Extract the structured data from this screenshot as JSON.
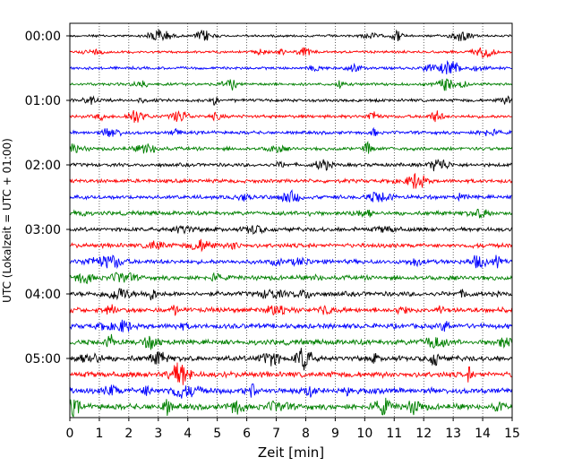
{
  "chart_data": {
    "type": "line",
    "title": "",
    "xlabel": "Zeit  [min]",
    "ylabel": "UTC (Lokalzeit = UTC + 01:00)",
    "xlim": [
      0,
      15
    ],
    "x_ticks": [
      0,
      1,
      2,
      3,
      4,
      5,
      6,
      7,
      8,
      9,
      10,
      11,
      12,
      13,
      14,
      15
    ],
    "x_tick_labels": [
      "0",
      "1",
      "2",
      "3",
      "4",
      "5",
      "6",
      "7",
      "8",
      "9",
      "10",
      "11",
      "12",
      "13",
      "14",
      "15"
    ],
    "y_tick_labels": [
      "00:00",
      "01:00",
      "02:00",
      "03:00",
      "04:00",
      "05:00"
    ],
    "y_tick_trace_index": [
      0,
      4,
      8,
      12,
      16,
      20
    ],
    "trace_colors": [
      "#000000",
      "#ff0000",
      "#0000ff",
      "#008000"
    ],
    "trace_count": 24,
    "traces_per_hour": 4,
    "minutes_per_trace": 15,
    "grid": "vertical dotted at each minute",
    "legend": "none"
  }
}
